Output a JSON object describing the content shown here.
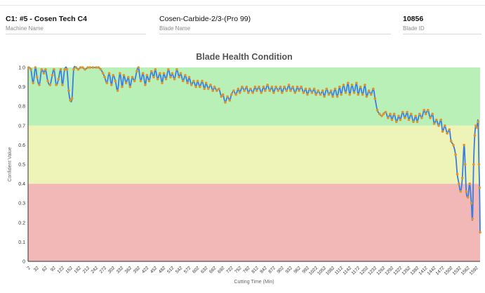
{
  "header": {
    "machine_name": "C1: #5 - Cosen Tech C4",
    "machine_label": "Machine Name",
    "blade_name": "Cosen-Carbide-2/3-(Pro 99)",
    "blade_label": "Blade Name",
    "blade_id": "10856",
    "blade_id_label": "Blade ID"
  },
  "chart_data": {
    "type": "line",
    "title": "Blade Health Condition",
    "xlabel": "Cutting Time (Min)",
    "ylabel": "Confident Value",
    "ylim": [
      0,
      1.0
    ],
    "y_ticks": [
      "0",
      "0.1",
      "0.2",
      "0.3",
      "0.4",
      "0.5",
      "0.6",
      "0.7",
      "0.8",
      "0.9",
      "1.0"
    ],
    "x_ticks": [
      "2",
      "32",
      "62",
      "92",
      "122",
      "152",
      "182",
      "212",
      "242",
      "272",
      "302",
      "332",
      "362",
      "392",
      "422",
      "452",
      "482",
      "512",
      "542",
      "572",
      "602",
      "632",
      "662",
      "692",
      "722",
      "752",
      "782",
      "812",
      "842",
      "872",
      "902",
      "932",
      "962",
      "992",
      "1022",
      "1052",
      "1082",
      "1112",
      "1142",
      "1172",
      "1202",
      "1232",
      "1262",
      "1292",
      "1322",
      "1352",
      "1382",
      "1412",
      "1442",
      "1472",
      "1502",
      "1532",
      "1562",
      "1592"
    ],
    "x_range": [
      0,
      1605
    ],
    "grid": false,
    "bands": [
      {
        "name": "good",
        "from": 0.7,
        "to": 1.0,
        "color": "#b8f0b8"
      },
      {
        "name": "warning",
        "from": 0.4,
        "to": 0.7,
        "color": "#eef3b8"
      },
      {
        "name": "critical",
        "from": 0.0,
        "to": 0.4,
        "color": "#f2b8b8"
      }
    ],
    "series": [
      {
        "line_color": "#3a7de0",
        "marker_color": "#e0932b",
        "points": [
          [
            2,
            1.0
          ],
          [
            10,
            0.99
          ],
          [
            18,
            0.92
          ],
          [
            26,
            1.0
          ],
          [
            32,
            0.95
          ],
          [
            40,
            0.91
          ],
          [
            48,
            0.99
          ],
          [
            56,
            0.97
          ],
          [
            62,
            0.99
          ],
          [
            70,
            0.93
          ],
          [
            78,
            0.91
          ],
          [
            86,
            0.96
          ],
          [
            92,
            0.99
          ],
          [
            100,
            0.91
          ],
          [
            108,
            0.94
          ],
          [
            116,
            0.99
          ],
          [
            122,
            0.91
          ],
          [
            130,
            0.99
          ],
          [
            138,
            0.99
          ],
          [
            144,
            0.88
          ],
          [
            150,
            0.83
          ],
          [
            156,
            0.84
          ],
          [
            162,
            0.99
          ],
          [
            170,
            1.0
          ],
          [
            178,
            0.99
          ],
          [
            186,
            1.0
          ],
          [
            194,
            1.0
          ],
          [
            202,
            0.99
          ],
          [
            212,
            1.0
          ],
          [
            220,
            1.0
          ],
          [
            230,
            1.0
          ],
          [
            242,
            1.0
          ],
          [
            250,
            1.0
          ],
          [
            258,
            0.99
          ],
          [
            266,
            0.97
          ],
          [
            272,
            0.95
          ],
          [
            280,
            0.92
          ],
          [
            288,
            0.97
          ],
          [
            296,
            0.91
          ],
          [
            302,
            0.96
          ],
          [
            310,
            0.93
          ],
          [
            318,
            0.88
          ],
          [
            326,
            0.97
          ],
          [
            334,
            0.9
          ],
          [
            340,
            0.96
          ],
          [
            348,
            0.92
          ],
          [
            356,
            0.95
          ],
          [
            362,
            0.9
          ],
          [
            370,
            0.95
          ],
          [
            378,
            0.93
          ],
          [
            386,
            0.98
          ],
          [
            392,
            1.0
          ],
          [
            400,
            0.93
          ],
          [
            408,
            0.97
          ],
          [
            416,
            0.91
          ],
          [
            422,
            0.96
          ],
          [
            430,
            0.93
          ],
          [
            438,
            0.98
          ],
          [
            446,
            0.95
          ],
          [
            452,
            0.99
          ],
          [
            460,
            0.94
          ],
          [
            468,
            0.97
          ],
          [
            476,
            0.92
          ],
          [
            482,
            0.97
          ],
          [
            490,
            0.94
          ],
          [
            498,
            0.99
          ],
          [
            506,
            0.95
          ],
          [
            512,
            0.97
          ],
          [
            520,
            0.94
          ],
          [
            528,
            0.99
          ],
          [
            536,
            0.95
          ],
          [
            542,
            0.97
          ],
          [
            550,
            0.93
          ],
          [
            558,
            0.96
          ],
          [
            566,
            0.92
          ],
          [
            572,
            0.95
          ],
          [
            580,
            0.91
          ],
          [
            588,
            0.93
          ],
          [
            596,
            0.9
          ],
          [
            602,
            0.93
          ],
          [
            610,
            0.9
          ],
          [
            618,
            0.93
          ],
          [
            626,
            0.89
          ],
          [
            632,
            0.92
          ],
          [
            640,
            0.89
          ],
          [
            648,
            0.91
          ],
          [
            656,
            0.88
          ],
          [
            662,
            0.9
          ],
          [
            670,
            0.88
          ],
          [
            678,
            0.89
          ],
          [
            686,
            0.85
          ],
          [
            692,
            0.86
          ],
          [
            700,
            0.82
          ],
          [
            708,
            0.85
          ],
          [
            716,
            0.83
          ],
          [
            722,
            0.86
          ],
          [
            730,
            0.88
          ],
          [
            738,
            0.86
          ],
          [
            746,
            0.89
          ],
          [
            752,
            0.87
          ],
          [
            760,
            0.9
          ],
          [
            768,
            0.88
          ],
          [
            776,
            0.9
          ],
          [
            782,
            0.87
          ],
          [
            790,
            0.89
          ],
          [
            798,
            0.87
          ],
          [
            806,
            0.9
          ],
          [
            812,
            0.88
          ],
          [
            820,
            0.9
          ],
          [
            828,
            0.87
          ],
          [
            836,
            0.9
          ],
          [
            842,
            0.88
          ],
          [
            850,
            0.91
          ],
          [
            858,
            0.88
          ],
          [
            866,
            0.9
          ],
          [
            872,
            0.87
          ],
          [
            880,
            0.9
          ],
          [
            888,
            0.88
          ],
          [
            896,
            0.9
          ],
          [
            902,
            0.87
          ],
          [
            910,
            0.9
          ],
          [
            918,
            0.88
          ],
          [
            926,
            0.91
          ],
          [
            932,
            0.88
          ],
          [
            940,
            0.9
          ],
          [
            948,
            0.87
          ],
          [
            956,
            0.9
          ],
          [
            962,
            0.88
          ],
          [
            970,
            0.9
          ],
          [
            978,
            0.87
          ],
          [
            986,
            0.89
          ],
          [
            992,
            0.86
          ],
          [
            1000,
            0.89
          ],
          [
            1008,
            0.87
          ],
          [
            1016,
            0.89
          ],
          [
            1022,
            0.86
          ],
          [
            1030,
            0.88
          ],
          [
            1038,
            0.86
          ],
          [
            1046,
            0.88
          ],
          [
            1052,
            0.85
          ],
          [
            1060,
            0.89
          ],
          [
            1068,
            0.86
          ],
          [
            1076,
            0.88
          ],
          [
            1082,
            0.85
          ],
          [
            1090,
            0.89
          ],
          [
            1098,
            0.85
          ],
          [
            1106,
            0.9
          ],
          [
            1112,
            0.86
          ],
          [
            1120,
            0.91
          ],
          [
            1128,
            0.87
          ],
          [
            1136,
            0.92
          ],
          [
            1142,
            0.86
          ],
          [
            1150,
            0.91
          ],
          [
            1158,
            0.87
          ],
          [
            1166,
            0.92
          ],
          [
            1172,
            0.86
          ],
          [
            1180,
            0.9
          ],
          [
            1188,
            0.86
          ],
          [
            1196,
            0.91
          ],
          [
            1202,
            0.85
          ],
          [
            1210,
            0.88
          ],
          [
            1218,
            0.86
          ],
          [
            1226,
            0.89
          ],
          [
            1232,
            0.84
          ],
          [
            1240,
            0.78
          ],
          [
            1248,
            0.76
          ],
          [
            1256,
            0.75
          ],
          [
            1262,
            0.76
          ],
          [
            1270,
            0.77
          ],
          [
            1278,
            0.74
          ],
          [
            1286,
            0.76
          ],
          [
            1292,
            0.73
          ],
          [
            1300,
            0.76
          ],
          [
            1308,
            0.72
          ],
          [
            1316,
            0.75
          ],
          [
            1322,
            0.73
          ],
          [
            1330,
            0.77
          ],
          [
            1338,
            0.74
          ],
          [
            1346,
            0.77
          ],
          [
            1352,
            0.73
          ],
          [
            1360,
            0.76
          ],
          [
            1368,
            0.72
          ],
          [
            1376,
            0.75
          ],
          [
            1382,
            0.72
          ],
          [
            1390,
            0.76
          ],
          [
            1398,
            0.74
          ],
          [
            1406,
            0.78
          ],
          [
            1412,
            0.76
          ],
          [
            1420,
            0.78
          ],
          [
            1428,
            0.74
          ],
          [
            1436,
            0.76
          ],
          [
            1442,
            0.71
          ],
          [
            1450,
            0.73
          ],
          [
            1458,
            0.7
          ],
          [
            1466,
            0.73
          ],
          [
            1472,
            0.67
          ],
          [
            1480,
            0.7
          ],
          [
            1488,
            0.66
          ],
          [
            1496,
            0.68
          ],
          [
            1502,
            0.62
          ],
          [
            1510,
            0.6
          ],
          [
            1518,
            0.55
          ],
          [
            1524,
            0.45
          ],
          [
            1530,
            0.4
          ],
          [
            1536,
            0.36
          ],
          [
            1542,
            0.43
          ],
          [
            1548,
            0.6
          ],
          [
            1552,
            0.5
          ],
          [
            1556,
            0.36
          ],
          [
            1562,
            0.33
          ],
          [
            1568,
            0.4
          ],
          [
            1574,
            0.3
          ],
          [
            1578,
            0.22
          ],
          [
            1582,
            0.5
          ],
          [
            1586,
            0.65
          ],
          [
            1590,
            0.7
          ],
          [
            1594,
            0.69
          ],
          [
            1598,
            0.72
          ],
          [
            1601,
            0.5
          ],
          [
            1603,
            0.38
          ],
          [
            1605,
            0.15
          ]
        ]
      }
    ]
  }
}
